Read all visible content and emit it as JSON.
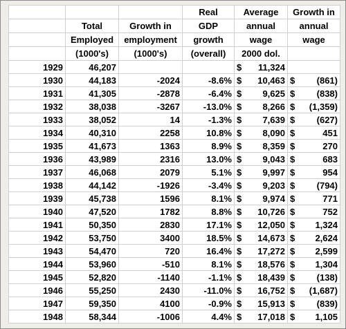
{
  "currency_symbol": "$",
  "header": {
    "lines": [
      [
        null,
        null,
        null,
        "Real",
        "Average",
        "Growth in"
      ],
      [
        null,
        "Total",
        "Growth in",
        "GDP",
        "annual",
        "annual"
      ],
      [
        null,
        "Employed",
        "employment",
        "growth",
        "wage",
        "wage"
      ],
      [
        null,
        "(1000's)",
        "(1000's)",
        "(overall)",
        "2000 dol.",
        null
      ]
    ]
  },
  "table": {
    "rows": [
      [
        "1929",
        "46,207",
        null,
        null,
        "11,324",
        null
      ],
      [
        "1930",
        "44,183",
        "-2024",
        "-8.6%",
        "10,463",
        "(861)"
      ],
      [
        "1931",
        "41,305",
        "-2878",
        "-6.4%",
        "9,625",
        "(838)"
      ],
      [
        "1932",
        "38,038",
        "-3267",
        "-13.0%",
        "8,266",
        "(1,359)"
      ],
      [
        "1933",
        "38,052",
        "14",
        "-1.3%",
        "7,639",
        "(627)"
      ],
      [
        "1934",
        "40,310",
        "2258",
        "10.8%",
        "8,090",
        "451"
      ],
      [
        "1935",
        "41,673",
        "1363",
        "8.9%",
        "8,359",
        "270"
      ],
      [
        "1936",
        "43,989",
        "2316",
        "13.0%",
        "9,043",
        "683"
      ],
      [
        "1937",
        "46,068",
        "2079",
        "5.1%",
        "9,997",
        "954"
      ],
      [
        "1938",
        "44,142",
        "-1926",
        "-3.4%",
        "9,203",
        "(794)"
      ],
      [
        "1939",
        "45,738",
        "1596",
        "8.1%",
        "9,974",
        "771"
      ],
      [
        "1940",
        "47,520",
        "1782",
        "8.8%",
        "10,726",
        "752"
      ],
      [
        "1941",
        "50,350",
        "2830",
        "17.1%",
        "12,050",
        "1,324"
      ],
      [
        "1942",
        "53,750",
        "3400",
        "18.5%",
        "14,673",
        "2,624"
      ],
      [
        "1943",
        "54,470",
        "720",
        "16.4%",
        "17,272",
        "2,599"
      ],
      [
        "1944",
        "53,960",
        "-510",
        "8.1%",
        "18,576",
        "1,304"
      ],
      [
        "1945",
        "52,820",
        "-1140",
        "-1.1%",
        "18,439",
        "(138)"
      ],
      [
        "1946",
        "55,250",
        "2430",
        "-11.0%",
        "16,752",
        "(1,687)"
      ],
      [
        "1947",
        "59,350",
        "4100",
        "-0.9%",
        "15,913",
        "(839)"
      ],
      [
        "1948",
        "58,344",
        "-1006",
        "4.4%",
        "17,018",
        "1,105"
      ]
    ]
  }
}
